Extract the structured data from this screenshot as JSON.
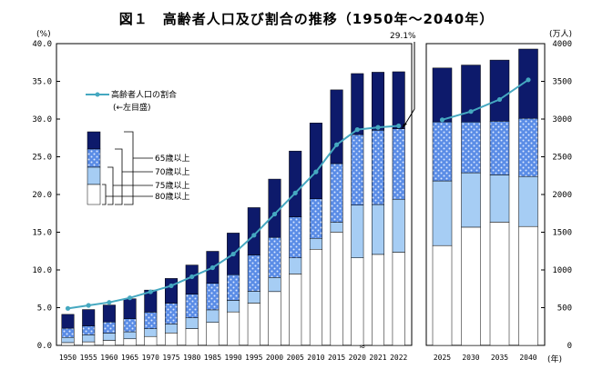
{
  "title": "図１　高齢者人口及び割合の推移（1950年～2040年）",
  "chart_data": {
    "type": "bar",
    "left_unit": "(%)",
    "right_unit": "(万人)",
    "x_unit": "(年)",
    "left_ylim": [
      0,
      40
    ],
    "right_ylim": [
      0,
      4000
    ],
    "left_ticks": [
      "0.0",
      "5.0",
      "10.0",
      "15.0",
      "20.0",
      "25.0",
      "30.0",
      "35.0",
      "40.0"
    ],
    "right_ticks": [
      "0",
      "500",
      "1000",
      "1500",
      "2000",
      "2500",
      "3000",
      "3500",
      "4000"
    ],
    "callout": "29.1%",
    "break_mark": "≈",
    "line_legend": "高齢者人口の割合",
    "line_legend_sub": "(←左目盛)",
    "bar_legend": [
      "65歳以上",
      "70歳以上",
      "75歳以上",
      "80歳以上"
    ],
    "categories": [
      "1950",
      "1955",
      "1960",
      "1965",
      "1970",
      "1975",
      "1980",
      "1985",
      "1990",
      "1995",
      "2000",
      "2005",
      "2010",
      "2015",
      "2020",
      "2021",
      "2022"
    ],
    "series": [
      {
        "name": "80歳以上",
        "values": [
          37,
          47,
          67,
          87,
          118,
          165,
          222,
          305,
          444,
          561,
          713,
          947,
          1274,
          1502,
          1160,
          1206,
          1235
        ]
      },
      {
        "name": "75歳以上",
        "values": [
          106,
          140,
          163,
          180,
          221,
          284,
          366,
          471,
          597,
          717,
          900,
          1160,
          1419,
          1632,
          1860,
          1867,
          1937
        ]
      },
      {
        "name": "70歳以上",
        "values": [
          228,
          258,
          310,
          353,
          441,
          559,
          679,
          822,
          937,
          1198,
          1432,
          1703,
          1943,
          2410,
          2795,
          2852,
          2872
        ]
      },
      {
        "name": "65歳以上",
        "values": [
          411,
          475,
          535,
          618,
          733,
          887,
          1065,
          1247,
          1489,
          1826,
          2204,
          2576,
          2948,
          3387,
          3603,
          3621,
          3627
        ]
      }
    ],
    "line": {
      "name": "高齢者人口の割合",
      "values": [
        4.9,
        5.3,
        5.7,
        6.3,
        7.1,
        7.9,
        9.1,
        10.3,
        12.1,
        14.6,
        17.4,
        20.2,
        23.0,
        26.6,
        28.6,
        28.9,
        29.1
      ]
    },
    "projection": {
      "categories": [
        "2025",
        "2030",
        "2035",
        "2040"
      ],
      "series": [
        {
          "name": "80歳以上",
          "values": [
            1323,
            1567,
            1634,
            1576
          ]
        },
        {
          "name": "75歳以上",
          "values": [
            2180,
            2288,
            2260,
            2239
          ]
        },
        {
          "name": "70歳以上",
          "values": [
            2963,
            2961,
            2972,
            3010
          ]
        },
        {
          "name": "65歳以上",
          "values": [
            3677,
            3716,
            3782,
            3928
          ]
        }
      ],
      "line": {
        "name": "高齢者人口の割合",
        "values": [
          29.9,
          31.0,
          32.6,
          35.2
        ]
      }
    },
    "colors": {
      "band80": "#ffffff",
      "band75": "#a6cdf4",
      "band70": "#5a8ce6",
      "band65": "#0d1a6b",
      "line": "#45a8c0"
    }
  }
}
